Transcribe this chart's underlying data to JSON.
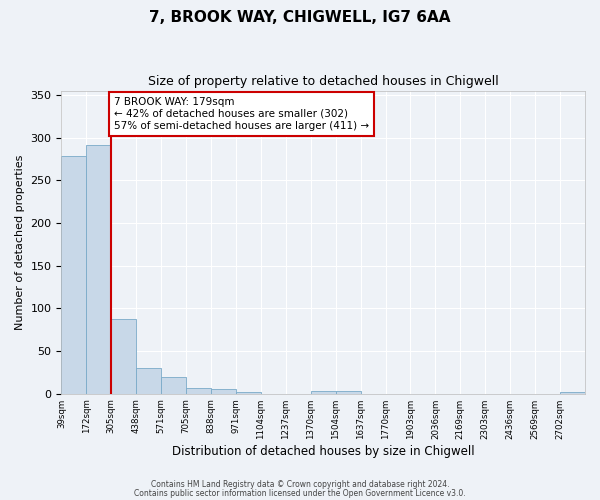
{
  "title": "7, BROOK WAY, CHIGWELL, IG7 6AA",
  "subtitle": "Size of property relative to detached houses in Chigwell",
  "xlabel": "Distribution of detached houses by size in Chigwell",
  "ylabel": "Number of detached properties",
  "bin_labels": [
    "39sqm",
    "172sqm",
    "305sqm",
    "438sqm",
    "571sqm",
    "705sqm",
    "838sqm",
    "971sqm",
    "1104sqm",
    "1237sqm",
    "1370sqm",
    "1504sqm",
    "1637sqm",
    "1770sqm",
    "1903sqm",
    "2036sqm",
    "2169sqm",
    "2303sqm",
    "2436sqm",
    "2569sqm",
    "2702sqm"
  ],
  "bar_values": [
    278,
    291,
    87,
    30,
    19,
    7,
    6,
    2,
    0,
    0,
    3,
    3,
    0,
    0,
    0,
    0,
    0,
    0,
    0,
    0,
    2
  ],
  "bar_color": "#c8d8e8",
  "bar_edge_color": "#7aaac8",
  "red_line_color": "#cc0000",
  "red_line_bin_index": 1,
  "annotation_title": "7 BROOK WAY: 179sqm",
  "annotation_line1": "← 42% of detached houses are smaller (302)",
  "annotation_line2": "57% of semi-detached houses are larger (411) →",
  "annotation_box_color": "#ffffff",
  "annotation_box_edge": "#cc0000",
  "ylim": [
    0,
    355
  ],
  "yticks": [
    0,
    50,
    100,
    150,
    200,
    250,
    300,
    350
  ],
  "footer1": "Contains HM Land Registry data © Crown copyright and database right 2024.",
  "footer2": "Contains public sector information licensed under the Open Government Licence v3.0.",
  "background_color": "#eef2f7",
  "grid_color": "#ffffff"
}
